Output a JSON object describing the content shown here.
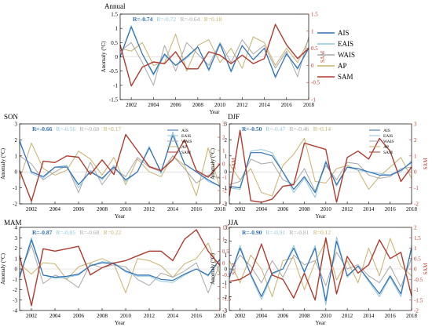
{
  "colors": {
    "AIS": "#2f6fb5",
    "EAIS": "#8fc6dc",
    "WAIS": "#a7a7a7",
    "AP": "#c8b06a",
    "SAM": "#b03a2e",
    "axis": "#000000",
    "sam_axis": "#c0392b"
  },
  "chart_data": [
    {
      "id": "annual",
      "type": "line",
      "title": "Annual",
      "xlabel": "Year",
      "ylabel": "Anomaly (°C)",
      "y2label": "SAM",
      "x": [
        2001,
        2002,
        2003,
        2004,
        2005,
        2006,
        2007,
        2008,
        2009,
        2010,
        2011,
        2012,
        2013,
        2014,
        2015,
        2016,
        2017,
        2018
      ],
      "xticks": [
        2002,
        2004,
        2006,
        2008,
        2010,
        2012,
        2014,
        2016,
        2018
      ],
      "xlim": [
        2001,
        2018
      ],
      "ylim": [
        -1.5,
        1.5
      ],
      "yticks": [
        -1.5,
        -1,
        -0.5,
        0,
        0.5,
        1,
        1.5
      ],
      "y2lim": [
        -1,
        1.5
      ],
      "y2ticks": [
        -1,
        -0.5,
        0,
        0.5,
        1,
        1.5
      ],
      "correlations": [
        {
          "series": "AIS",
          "text": "R=-0.74"
        },
        {
          "series": "EAIS",
          "text": "R=-0.72"
        },
        {
          "series": "WAIS",
          "text": "R=-0.64"
        },
        {
          "series": "AP",
          "text": "R=0.18"
        }
      ],
      "legend": {
        "show": true,
        "position": "right",
        "entries": [
          "AIS",
          "EAIS",
          "WAIS",
          "AP",
          "SAM"
        ]
      },
      "series": [
        {
          "name": "AIS",
          "axis": "left",
          "values": [
            0.0,
            1.05,
            0.1,
            -0.6,
            0.1,
            -0.3,
            0.0,
            0.35,
            -0.45,
            0.45,
            -0.5,
            0.4,
            -0.1,
            0.3,
            -0.7,
            0.1,
            -0.4,
            0.3
          ]
        },
        {
          "name": "EAIS",
          "axis": "left",
          "values": [
            0.0,
            1.1,
            0.1,
            -0.65,
            0.05,
            -0.3,
            -0.05,
            0.35,
            -0.5,
            0.5,
            -0.55,
            0.4,
            -0.1,
            0.3,
            -0.75,
            0.15,
            -0.45,
            0.35
          ]
        },
        {
          "name": "WAIS",
          "axis": "left",
          "values": [
            0.2,
            0.5,
            -0.2,
            -1.0,
            0.4,
            -0.5,
            0.5,
            0.1,
            -0.3,
            0.5,
            -0.2,
            0.6,
            0.1,
            0.4,
            -0.4,
            0.2,
            -0.7,
            0.7
          ]
        },
        {
          "name": "AP",
          "axis": "left",
          "values": [
            0.3,
            0.2,
            0.5,
            -0.3,
            -0.2,
            0.8,
            -0.5,
            0.4,
            0.6,
            -0.2,
            0.3,
            -0.4,
            0.7,
            0.5,
            -0.3,
            0.3,
            -0.2,
            0.6
          ]
        },
        {
          "name": "SAM",
          "axis": "right",
          "values": [
            0.6,
            -0.6,
            -0.05,
            0.1,
            0.05,
            0.4,
            -0.1,
            -0.1,
            0.4,
            0.3,
            0.05,
            0.3,
            0.05,
            0.2,
            1.2,
            0.6,
            0.2,
            0.5
          ]
        }
      ]
    },
    {
      "id": "son",
      "type": "line",
      "title": "SON",
      "xlabel": "Year",
      "ylabel": "Anomaly (°C)",
      "y2label": "SAM",
      "x": [
        2001,
        2002,
        2003,
        2004,
        2005,
        2006,
        2007,
        2008,
        2009,
        2010,
        2011,
        2012,
        2013,
        2014,
        2015,
        2016,
        2017,
        2018
      ],
      "xticks": [
        2002,
        2004,
        2006,
        2008,
        2010,
        2012,
        2014,
        2016,
        2018
      ],
      "xlim": [
        2001,
        2018
      ],
      "ylim": [
        -2,
        3
      ],
      "yticks": [
        -2,
        -1,
        0,
        1,
        2,
        3
      ],
      "y2lim": [
        -3,
        3
      ],
      "y2ticks": [
        -3,
        -2,
        -1,
        0,
        1,
        2,
        3
      ],
      "correlations": [
        {
          "series": "AIS",
          "text": "R=-0.66"
        },
        {
          "series": "EAIS",
          "text": "R=-0.56"
        },
        {
          "series": "WAIS",
          "text": "R=-0.60"
        },
        {
          "series": "AP",
          "text": "R=0.17"
        }
      ],
      "legend": {
        "show": true,
        "position": "top-right",
        "entries": [
          "AIS",
          "EAIS",
          "WAIS",
          "AP",
          "SAM"
        ]
      },
      "series": [
        {
          "name": "AIS",
          "axis": "left",
          "values": [
            1.9,
            0.0,
            -0.3,
            0.3,
            0.3,
            -0.8,
            0.0,
            -0.4,
            0.3,
            -0.5,
            0.0,
            1.5,
            0.0,
            2.3,
            0.5,
            0.0,
            -0.5,
            -0.9
          ]
        },
        {
          "name": "EAIS",
          "axis": "left",
          "values": [
            2.0,
            -0.1,
            -0.4,
            0.3,
            0.4,
            -1.0,
            0.1,
            -0.5,
            0.4,
            -0.6,
            0.0,
            1.6,
            -0.1,
            2.5,
            0.5,
            0.0,
            -0.6,
            -0.9
          ]
        },
        {
          "name": "WAIS",
          "axis": "left",
          "values": [
            1.0,
            0.5,
            -0.5,
            0.0,
            0.4,
            -1.3,
            0.6,
            -0.8,
            0.2,
            -0.3,
            0.9,
            0.3,
            0.0,
            1.0,
            0.2,
            -0.7,
            -0.2,
            -0.4
          ]
        },
        {
          "name": "AP",
          "axis": "left",
          "values": [
            -0.5,
            1.8,
            0.2,
            -0.2,
            0.1,
            1.3,
            0.8,
            -0.2,
            0.9,
            -0.8,
            0.8,
            0.0,
            -0.3,
            1.0,
            0.4,
            -1.5,
            1.5,
            -1.0
          ]
        },
        {
          "name": "SAM",
          "axis": "right",
          "values": [
            -0.5,
            -2.8,
            0.2,
            0.1,
            0.6,
            0.5,
            -0.8,
            0.3,
            -0.8,
            2.2,
            1.0,
            -0.2,
            -0.5,
            0.3,
            1.8,
            -0.5,
            -1.0,
            0.0
          ]
        }
      ]
    },
    {
      "id": "djf",
      "type": "line",
      "title": "DJF",
      "xlabel": "Year",
      "ylabel": "Anomaly (°C)",
      "y2label": "SAM",
      "x": [
        2001,
        2002,
        2003,
        2004,
        2005,
        2006,
        2007,
        2008,
        2009,
        2010,
        2011,
        2012,
        2013,
        2014,
        2015,
        2016,
        2017,
        2018
      ],
      "xticks": [
        2002,
        2004,
        2006,
        2008,
        2010,
        2012,
        2014,
        2016,
        2018
      ],
      "xlim": [
        2001,
        2018
      ],
      "ylim": [
        -2,
        3
      ],
      "yticks": [
        -2,
        -1,
        0,
        1,
        2,
        3
      ],
      "y2lim": [
        -2,
        3
      ],
      "y2ticks": [
        -2,
        -1,
        0,
        1,
        2,
        3
      ],
      "correlations": [
        {
          "series": "AIS",
          "text": "R=-0.50"
        },
        {
          "series": "EAIS",
          "text": "R=-0.47"
        },
        {
          "series": "WAIS",
          "text": "R=-0.46"
        },
        {
          "series": "AP",
          "text": "R=0.14"
        }
      ],
      "legend": {
        "show": true,
        "position": "top-right",
        "entries": [
          "AIS",
          "EAIS",
          "WAIS",
          "AP",
          "SAM"
        ]
      },
      "series": [
        {
          "name": "AIS",
          "axis": "left",
          "values": [
            -0.9,
            -1.0,
            1.2,
            1.2,
            1.0,
            0.0,
            -1.1,
            -0.3,
            -1.3,
            0.6,
            -0.8,
            0.3,
            0.2,
            0.0,
            -0.2,
            -0.2,
            0.1,
            0.6
          ]
        },
        {
          "name": "EAIS",
          "axis": "left",
          "values": [
            -1.0,
            -1.1,
            1.3,
            1.4,
            1.2,
            0.0,
            -1.3,
            -0.4,
            -1.6,
            0.7,
            -0.9,
            0.3,
            0.1,
            0.0,
            -0.1,
            -0.2,
            0.0,
            0.7
          ]
        },
        {
          "name": "WAIS",
          "axis": "left",
          "values": [
            -0.8,
            -0.6,
            0.8,
            0.5,
            0.6,
            -0.5,
            -0.8,
            0.2,
            -1.2,
            0.4,
            -0.5,
            0.6,
            0.5,
            -0.2,
            -0.4,
            -0.3,
            0.2,
            0.3
          ]
        },
        {
          "name": "AP",
          "axis": "left",
          "values": [
            0.5,
            -0.5,
            0.2,
            -1.3,
            -1.5,
            0.4,
            1.1,
            2.1,
            -0.6,
            -0.7,
            0.2,
            0.4,
            0.1,
            -1.1,
            -0.3,
            0.3,
            0.9,
            -0.4
          ]
        },
        {
          "name": "SAM",
          "axis": "right",
          "values": [
            -1.5,
            2.6,
            -1.8,
            -1.9,
            -1.7,
            -0.9,
            -0.8,
            1.8,
            1.6,
            1.4,
            -1.9,
            0.9,
            1.3,
            0.8,
            2.1,
            1.3,
            -0.6,
            0.3
          ]
        }
      ]
    },
    {
      "id": "mam",
      "type": "line",
      "title": "MAM",
      "xlabel": "Year",
      "ylabel": "Anomaly (°C)",
      "y2label": "SAM",
      "x": [
        2001,
        2002,
        2003,
        2004,
        2005,
        2006,
        2007,
        2008,
        2009,
        2010,
        2011,
        2012,
        2013,
        2014,
        2015,
        2016,
        2017,
        2018
      ],
      "xticks": [
        2002,
        2004,
        2006,
        2008,
        2010,
        2012,
        2014,
        2016,
        2018
      ],
      "xlim": [
        2001,
        2018
      ],
      "ylim": [
        -4,
        4
      ],
      "yticks": [
        -4,
        -3,
        -2,
        -1,
        0,
        1,
        2,
        3,
        4
      ],
      "y2lim": [
        -2,
        1.5
      ],
      "y2ticks": [
        -2,
        -1.5,
        -1,
        -0.5,
        0,
        0.5,
        1,
        1.5
      ],
      "correlations": [
        {
          "series": "AIS",
          "text": "R=-0.87"
        },
        {
          "series": "EAIS",
          "text": "R=-0.85"
        },
        {
          "series": "WAIS",
          "text": "R=-0.68"
        },
        {
          "series": "AP",
          "text": "R=0.22"
        }
      ],
      "legend": {
        "show": false
      },
      "series": [
        {
          "name": "AIS",
          "axis": "left",
          "values": [
            -0.8,
            2.8,
            -0.6,
            -0.8,
            -0.7,
            -0.5,
            0.3,
            0.6,
            0.5,
            -0.2,
            -0.6,
            -0.6,
            -1.0,
            -1.1,
            -0.5,
            0.0,
            -0.6,
            0.9
          ]
        },
        {
          "name": "EAIS",
          "axis": "left",
          "values": [
            -0.8,
            3.0,
            -0.6,
            -0.9,
            -0.8,
            -0.6,
            0.3,
            0.7,
            0.6,
            -0.3,
            -0.7,
            -0.7,
            -1.2,
            -1.3,
            -0.6,
            0.0,
            -0.7,
            1.0
          ]
        },
        {
          "name": "WAIS",
          "axis": "left",
          "values": [
            -0.5,
            2.3,
            -1.4,
            -0.6,
            -1.0,
            -1.8,
            0.5,
            0.1,
            0.4,
            0.2,
            -1.0,
            -1.6,
            -0.4,
            -0.8,
            -0.2,
            0.6,
            -2.3,
            0.5
          ]
        },
        {
          "name": "AP",
          "axis": "left",
          "values": [
            0.5,
            -0.5,
            0.6,
            0.5,
            -1.0,
            0.2,
            0.6,
            1.0,
            0.5,
            -2.3,
            1.0,
            0.8,
            0.3,
            -0.8,
            0.5,
            1.0,
            2.5,
            -0.5
          ]
        },
        {
          "name": "SAM",
          "axis": "right",
          "values": [
            0.3,
            -1.8,
            0.6,
            0.5,
            0.6,
            0.7,
            -0.5,
            -0.2,
            0.0,
            0.1,
            0.3,
            0.5,
            0.5,
            0.1,
            1.0,
            1.4,
            0.5,
            -0.1
          ]
        }
      ]
    },
    {
      "id": "jja",
      "type": "line",
      "title": "JJA",
      "xlabel": "Year",
      "ylabel": "Anomaly (°C)",
      "y2label": "SAM",
      "x": [
        2001,
        2002,
        2003,
        2004,
        2005,
        2006,
        2007,
        2008,
        2009,
        2010,
        2011,
        2012,
        2013,
        2014,
        2015,
        2016,
        2017,
        2018
      ],
      "xticks": [
        2002,
        2004,
        2006,
        2008,
        2010,
        2012,
        2014,
        2016,
        2018
      ],
      "xlim": [
        2001,
        2018
      ],
      "ylim": [
        -3,
        3
      ],
      "yticks": [
        -3,
        -2,
        -1,
        0,
        1,
        2,
        3
      ],
      "y2lim": [
        -2,
        2
      ],
      "y2ticks": [
        -2,
        -1.5,
        -1,
        -0.5,
        0,
        0.5,
        1,
        1.5,
        2
      ],
      "correlations": [
        {
          "series": "AIS",
          "text": "R=-0.90"
        },
        {
          "series": "EAIS",
          "text": "R=-0.91"
        },
        {
          "series": "WAIS",
          "text": "R=-0.81"
        },
        {
          "series": "AP",
          "text": "R=0.12"
        }
      ],
      "legend": {
        "show": false
      },
      "series": [
        {
          "name": "AIS",
          "axis": "left",
          "values": [
            -0.6,
            1.5,
            -0.4,
            -2.0,
            -0.3,
            0.0,
            1.5,
            -0.2,
            1.5,
            -2.3,
            2.0,
            -0.5,
            0.2,
            -0.8,
            -1.8,
            -0.5,
            -1.8,
            1.5
          ]
        },
        {
          "name": "EAIS",
          "axis": "left",
          "values": [
            -0.7,
            1.7,
            -0.5,
            -2.2,
            -0.4,
            0.0,
            1.7,
            -0.3,
            1.7,
            -2.6,
            2.3,
            -0.6,
            0.2,
            -0.9,
            -2.0,
            -0.6,
            -2.0,
            1.7
          ]
        },
        {
          "name": "WAIS",
          "axis": "left",
          "values": [
            -0.3,
            1.0,
            0.2,
            -1.0,
            0.6,
            -0.6,
            1.0,
            0.3,
            0.6,
            -1.2,
            1.2,
            0.0,
            0.3,
            -0.5,
            -1.0,
            0.2,
            -1.3,
            0.8
          ]
        },
        {
          "name": "AP",
          "axis": "left",
          "values": [
            0.6,
            -1.0,
            1.0,
            0.0,
            -2.0,
            0.6,
            0.8,
            -1.5,
            0.5,
            2.0,
            -0.8,
            0.6,
            -1.0,
            1.5,
            -0.5,
            2.2,
            0.2,
            -0.5
          ]
        },
        {
          "name": "SAM",
          "axis": "right",
          "values": [
            -0.6,
            -0.5,
            -0.2,
            1.2,
            -0.3,
            -0.5,
            -1.4,
            -0.2,
            -1.5,
            1.5,
            -1.2,
            0.6,
            -0.2,
            0.2,
            1.4,
            0.5,
            0.8,
            -1.3
          ]
        }
      ]
    }
  ]
}
